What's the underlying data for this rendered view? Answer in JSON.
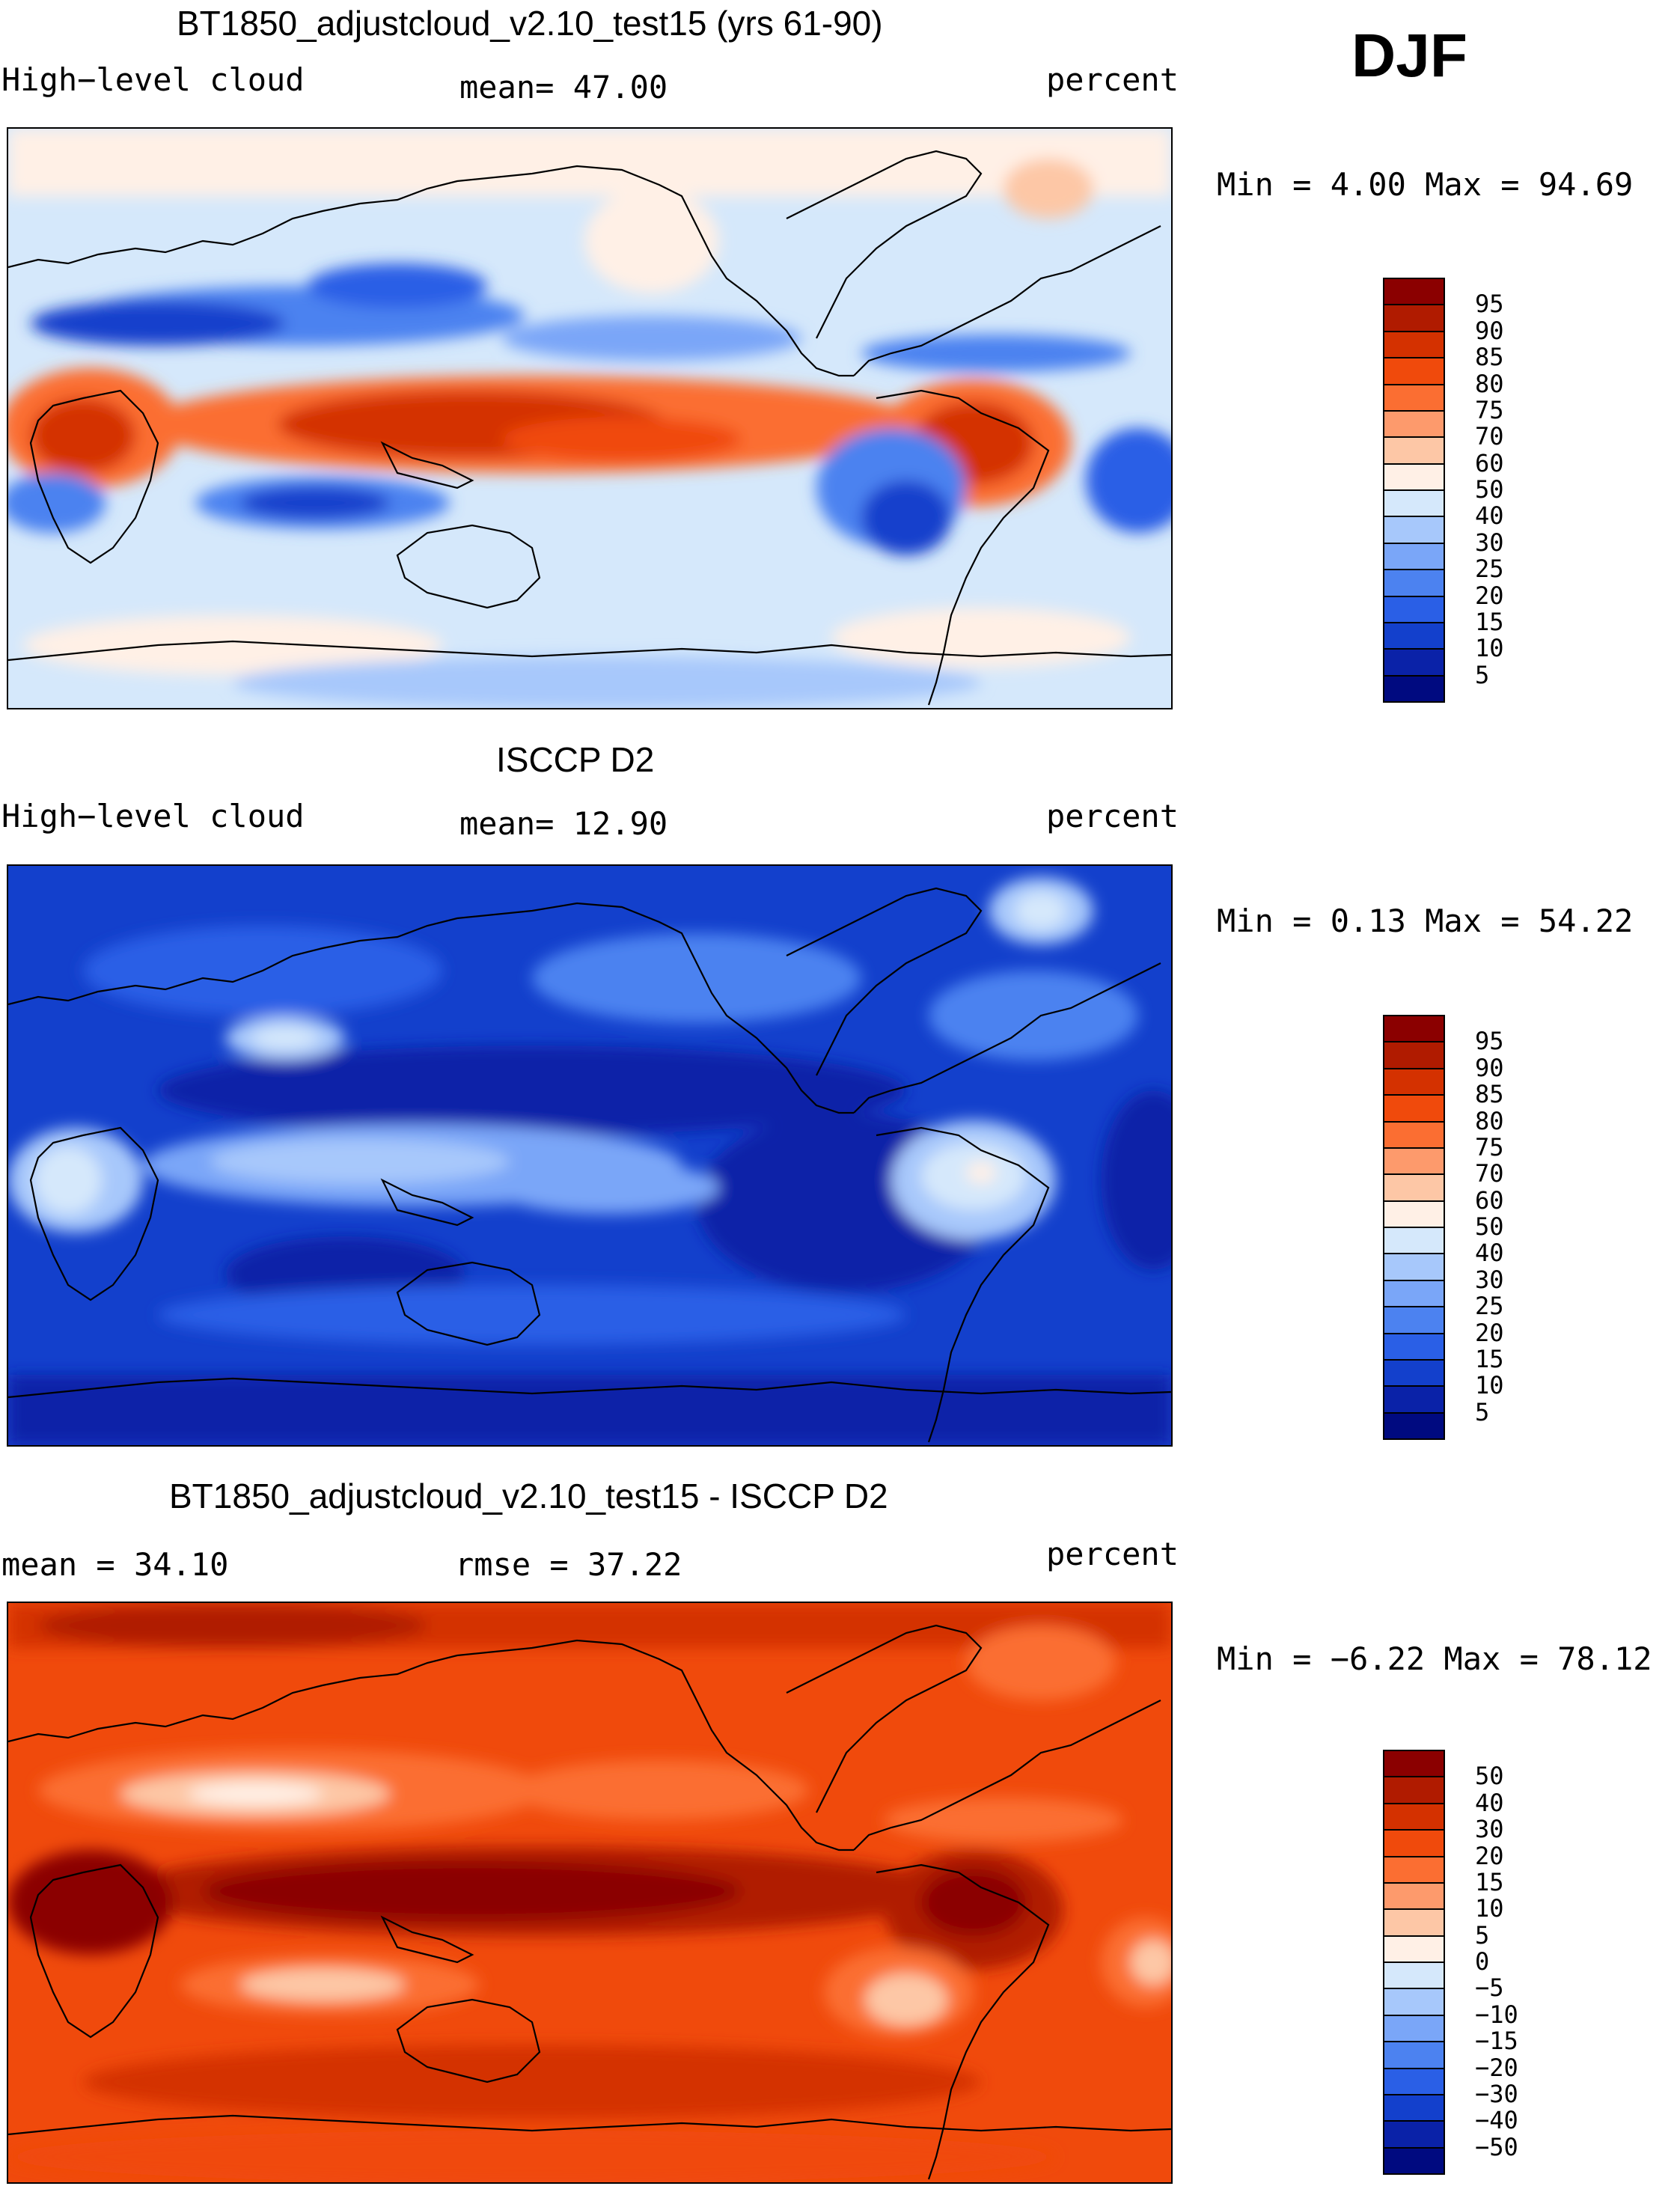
{
  "season": "DJF",
  "panels": [
    {
      "id": "model",
      "title": "BT1850_adjustcloud_v2.10_test15 (yrs 61-90)",
      "left_text": "High−level cloud",
      "center_text": "mean=  47.00",
      "units": "percent",
      "range_text": "Min =    4.00 Max =  94.69",
      "colorbar": {
        "labels": [
          "95",
          "90",
          "85",
          "80",
          "75",
          "70",
          "60",
          "50",
          "40",
          "30",
          "25",
          "20",
          "15",
          "10",
          "5"
        ],
        "colors": [
          "#8b0000",
          "#b01b00",
          "#d43100",
          "#f04a0c",
          "#fb6e32",
          "#fd9a6c",
          "#fdc7a6",
          "#fff0e6",
          "#d5e8fb",
          "#a7c8fb",
          "#7aa6f8",
          "#4c82f0",
          "#2a5fe6",
          "#1340cc",
          "#0a22a8",
          "#000a80"
        ]
      }
    },
    {
      "id": "obs",
      "title": "ISCCP D2",
      "left_text": "High−level cloud",
      "center_text": "mean=  12.90",
      "units": "percent",
      "range_text": "Min =    0.13 Max =  54.22",
      "colorbar": {
        "labels": [
          "95",
          "90",
          "85",
          "80",
          "75",
          "70",
          "60",
          "50",
          "40",
          "30",
          "25",
          "20",
          "15",
          "10",
          "5"
        ],
        "colors": [
          "#8b0000",
          "#b01b00",
          "#d43100",
          "#f04a0c",
          "#fb6e32",
          "#fd9a6c",
          "#fdc7a6",
          "#fff0e6",
          "#d5e8fb",
          "#a7c8fb",
          "#7aa6f8",
          "#4c82f0",
          "#2a5fe6",
          "#1340cc",
          "#0a22a8",
          "#000a80"
        ]
      }
    },
    {
      "id": "diff",
      "title": "BT1850_adjustcloud_v2.10_test15 - ISCCP D2",
      "left_text": "mean =   34.10",
      "center_text": "rmse =   37.22",
      "units": "percent",
      "range_text": "Min =  −6.22 Max =   78.12",
      "colorbar": {
        "labels": [
          "50",
          "40",
          "30",
          "20",
          "15",
          "10",
          "5",
          "0",
          "−5",
          "−10",
          "−15",
          "−20",
          "−30",
          "−40",
          "−50"
        ],
        "colors": [
          "#8b0000",
          "#b01b00",
          "#d43100",
          "#f04a0c",
          "#fb6e32",
          "#fd9a6c",
          "#fdc7a6",
          "#fff0e6",
          "#d5e8fb",
          "#a7c8fb",
          "#7aa6f8",
          "#4c82f0",
          "#2a5fe6",
          "#1340cc",
          "#0a22a8",
          "#000a80"
        ]
      }
    }
  ]
}
